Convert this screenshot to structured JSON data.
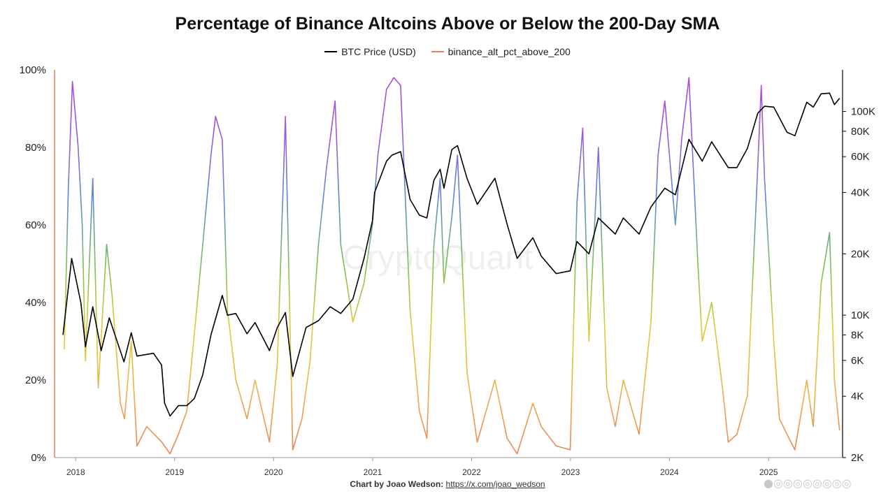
{
  "chart_data": {
    "type": "line",
    "title": "Percentage of Binance Altcoins Above or Below the 200-Day SMA",
    "legend_position": "top-center",
    "grid": false,
    "series": [
      {
        "name": "BTC Price (USD)",
        "color": "#000000",
        "axis": "right",
        "points": [
          [
            "2017-11-15",
            8000
          ],
          [
            "2017-12-17",
            19000
          ],
          [
            "2018-01-20",
            11500
          ],
          [
            "2018-02-06",
            7000
          ],
          [
            "2018-03-05",
            11000
          ],
          [
            "2018-04-05",
            6700
          ],
          [
            "2018-05-05",
            9700
          ],
          [
            "2018-06-28",
            5900
          ],
          [
            "2018-07-25",
            8200
          ],
          [
            "2018-08-15",
            6300
          ],
          [
            "2018-10-15",
            6500
          ],
          [
            "2018-11-14",
            5700
          ],
          [
            "2018-11-25",
            3700
          ],
          [
            "2018-12-15",
            3200
          ],
          [
            "2019-01-15",
            3600
          ],
          [
            "2019-02-15",
            3600
          ],
          [
            "2019-03-15",
            3900
          ],
          [
            "2019-04-15",
            5100
          ],
          [
            "2019-05-15",
            8000
          ],
          [
            "2019-06-26",
            12500
          ],
          [
            "2019-07-15",
            10000
          ],
          [
            "2019-08-15",
            10200
          ],
          [
            "2019-09-25",
            8100
          ],
          [
            "2019-10-25",
            9200
          ],
          [
            "2019-12-17",
            6700
          ],
          [
            "2020-01-15",
            8700
          ],
          [
            "2020-02-14",
            10300
          ],
          [
            "2020-03-12",
            5000
          ],
          [
            "2020-04-30",
            8700
          ],
          [
            "2020-06-15",
            9400
          ],
          [
            "2020-07-28",
            11000
          ],
          [
            "2020-09-05",
            10200
          ],
          [
            "2020-10-20",
            12000
          ],
          [
            "2020-11-30",
            19000
          ],
          [
            "2020-12-31",
            29000
          ],
          [
            "2021-01-08",
            40000
          ],
          [
            "2021-02-21",
            57000
          ],
          [
            "2021-03-13",
            61000
          ],
          [
            "2021-04-14",
            63500
          ],
          [
            "2021-05-19",
            37000
          ],
          [
            "2021-06-22",
            31000
          ],
          [
            "2021-07-20",
            30000
          ],
          [
            "2021-08-15",
            46000
          ],
          [
            "2021-09-07",
            52000
          ],
          [
            "2021-09-21",
            42000
          ],
          [
            "2021-10-20",
            65000
          ],
          [
            "2021-11-10",
            68000
          ],
          [
            "2021-12-15",
            47000
          ],
          [
            "2022-01-22",
            35000
          ],
          [
            "2022-03-28",
            47000
          ],
          [
            "2022-05-12",
            28000
          ],
          [
            "2022-06-18",
            19000
          ],
          [
            "2022-08-15",
            24000
          ],
          [
            "2022-09-15",
            19500
          ],
          [
            "2022-11-09",
            16000
          ],
          [
            "2022-12-31",
            16500
          ],
          [
            "2023-01-25",
            23000
          ],
          [
            "2023-03-10",
            20000
          ],
          [
            "2023-04-14",
            30000
          ],
          [
            "2023-06-15",
            25000
          ],
          [
            "2023-07-15",
            30000
          ],
          [
            "2023-09-11",
            25000
          ],
          [
            "2023-10-25",
            34000
          ],
          [
            "2023-12-15",
            42000
          ],
          [
            "2024-01-23",
            39000
          ],
          [
            "2024-03-13",
            73000
          ],
          [
            "2024-05-01",
            57000
          ],
          [
            "2024-06-05",
            71000
          ],
          [
            "2024-08-05",
            53000
          ],
          [
            "2024-09-06",
            53000
          ],
          [
            "2024-10-15",
            66000
          ],
          [
            "2024-11-22",
            98000
          ],
          [
            "2024-12-17",
            106000
          ],
          [
            "2025-01-20",
            105000
          ],
          [
            "2025-03-10",
            79000
          ],
          [
            "2025-04-08",
            76000
          ],
          [
            "2025-05-22",
            111000
          ],
          [
            "2025-06-15",
            105000
          ],
          [
            "2025-07-14",
            122000
          ],
          [
            "2025-08-14",
            123000
          ],
          [
            "2025-09-01",
            108000
          ],
          [
            "2025-09-20",
            116000
          ]
        ]
      },
      {
        "name": "binance_alt_pct_above_200",
        "color": "#e8805a",
        "axis": "left",
        "color_scale": [
          "#e8805a",
          "#eeb048",
          "#dccc38",
          "#7cc056",
          "#5a8ad8",
          "#9c5ad8",
          "#b048e8"
        ],
        "points": [
          [
            "2017-11-20",
            28
          ],
          [
            "2017-12-05",
            70
          ],
          [
            "2017-12-20",
            97
          ],
          [
            "2018-01-10",
            80
          ],
          [
            "2018-01-25",
            60
          ],
          [
            "2018-02-06",
            25
          ],
          [
            "2018-03-05",
            72
          ],
          [
            "2018-03-25",
            18
          ],
          [
            "2018-04-25",
            55
          ],
          [
            "2018-05-15",
            42
          ],
          [
            "2018-06-15",
            14
          ],
          [
            "2018-06-30",
            10
          ],
          [
            "2018-07-25",
            30
          ],
          [
            "2018-08-15",
            3
          ],
          [
            "2018-09-20",
            8
          ],
          [
            "2018-11-15",
            4
          ],
          [
            "2018-12-15",
            1
          ],
          [
            "2019-01-15",
            6
          ],
          [
            "2019-02-15",
            12
          ],
          [
            "2019-03-15",
            32
          ],
          [
            "2019-04-15",
            55
          ],
          [
            "2019-05-15",
            78
          ],
          [
            "2019-06-01",
            88
          ],
          [
            "2019-06-26",
            82
          ],
          [
            "2019-07-15",
            38
          ],
          [
            "2019-08-15",
            20
          ],
          [
            "2019-09-25",
            10
          ],
          [
            "2019-10-25",
            20
          ],
          [
            "2019-11-20",
            12
          ],
          [
            "2019-12-17",
            4
          ],
          [
            "2020-01-15",
            24
          ],
          [
            "2020-02-14",
            88
          ],
          [
            "2020-03-12",
            2
          ],
          [
            "2020-04-15",
            10
          ],
          [
            "2020-05-15",
            25
          ],
          [
            "2020-06-15",
            55
          ],
          [
            "2020-07-15",
            75
          ],
          [
            "2020-08-15",
            92
          ],
          [
            "2020-09-05",
            55
          ],
          [
            "2020-10-20",
            35
          ],
          [
            "2020-11-30",
            45
          ],
          [
            "2020-12-31",
            60
          ],
          [
            "2021-01-20",
            78
          ],
          [
            "2021-02-21",
            95
          ],
          [
            "2021-03-20",
            98
          ],
          [
            "2021-04-14",
            96
          ],
          [
            "2021-05-19",
            38
          ],
          [
            "2021-06-22",
            12
          ],
          [
            "2021-07-20",
            5
          ],
          [
            "2021-08-15",
            55
          ],
          [
            "2021-09-07",
            72
          ],
          [
            "2021-09-21",
            45
          ],
          [
            "2021-10-20",
            62
          ],
          [
            "2021-11-10",
            78
          ],
          [
            "2021-12-15",
            22
          ],
          [
            "2022-01-22",
            4
          ],
          [
            "2022-03-28",
            20
          ],
          [
            "2022-05-12",
            5
          ],
          [
            "2022-06-18",
            1
          ],
          [
            "2022-08-15",
            14
          ],
          [
            "2022-09-15",
            8
          ],
          [
            "2022-11-09",
            3
          ],
          [
            "2022-12-31",
            2
          ],
          [
            "2023-01-25",
            66
          ],
          [
            "2023-02-15",
            85
          ],
          [
            "2023-03-10",
            30
          ],
          [
            "2023-04-14",
            80
          ],
          [
            "2023-05-15",
            18
          ],
          [
            "2023-06-15",
            8
          ],
          [
            "2023-07-15",
            20
          ],
          [
            "2023-09-11",
            6
          ],
          [
            "2023-10-25",
            35
          ],
          [
            "2023-11-20",
            78
          ],
          [
            "2023-12-15",
            92
          ],
          [
            "2024-01-23",
            60
          ],
          [
            "2024-02-15",
            82
          ],
          [
            "2024-03-13",
            98
          ],
          [
            "2024-04-15",
            50
          ],
          [
            "2024-05-01",
            30
          ],
          [
            "2024-06-05",
            40
          ],
          [
            "2024-07-15",
            18
          ],
          [
            "2024-08-05",
            4
          ],
          [
            "2024-09-06",
            6
          ],
          [
            "2024-10-15",
            16
          ],
          [
            "2024-11-22",
            75
          ],
          [
            "2024-12-05",
            96
          ],
          [
            "2024-12-17",
            72
          ],
          [
            "2025-01-20",
            30
          ],
          [
            "2025-02-10",
            10
          ],
          [
            "2025-03-10",
            6
          ],
          [
            "2025-04-08",
            2
          ],
          [
            "2025-05-22",
            20
          ],
          [
            "2025-06-15",
            8
          ],
          [
            "2025-07-14",
            45
          ],
          [
            "2025-08-14",
            58
          ],
          [
            "2025-09-01",
            20
          ],
          [
            "2025-09-20",
            7
          ]
        ]
      }
    ],
    "x_axis": {
      "range": [
        "2017-10-20",
        "2025-10-01"
      ],
      "tick_labels": [
        "2018",
        "2019",
        "2020",
        "2021",
        "2022",
        "2023",
        "2024",
        "2025"
      ]
    },
    "left_axis": {
      "range": [
        0,
        100
      ],
      "tick_values": [
        0,
        20,
        40,
        60,
        80,
        100
      ],
      "tick_labels": [
        "0%",
        "20%",
        "40%",
        "60%",
        "80%",
        "100%"
      ]
    },
    "right_axis": {
      "scale": "log",
      "range": [
        2000,
        160000
      ],
      "tick_values": [
        2000,
        4000,
        6000,
        8000,
        10000,
        20000,
        40000,
        60000,
        80000,
        100000
      ],
      "tick_labels": [
        "2K",
        "4K",
        "6K",
        "8K",
        "10K",
        "20K",
        "40K",
        "60K",
        "80K",
        "100K"
      ]
    }
  },
  "credit": {
    "label": "Chart by Joao Wedson:",
    "url": "https://x.com/joao_wedson"
  },
  "brand": {
    "watermark": "CryptoQuant"
  }
}
